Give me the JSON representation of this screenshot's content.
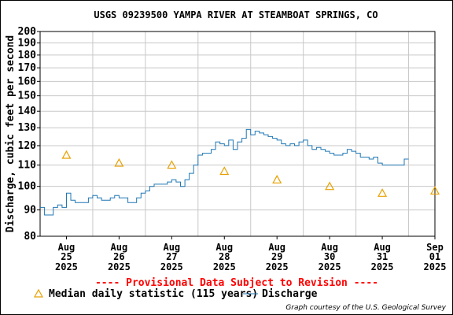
{
  "chart_data": {
    "type": "line",
    "title": "USGS 09239500 YAMPA RIVER AT STEAMBOAT SPRINGS, CO",
    "ylabel": "Discharge, cubic feet per second",
    "xlabel": "",
    "ylim": [
      80,
      200
    ],
    "yscale": "log",
    "yticks": [
      "80",
      "90",
      "100",
      "110",
      "120",
      "130",
      "140",
      "150",
      "160",
      "170",
      "180",
      "190",
      "200"
    ],
    "xlim": [
      "2025-08-25T00:00",
      "2025-09-01T12:00"
    ],
    "xticks": [
      {
        "date": "2025-08-25T12:00",
        "month": "Aug",
        "day": "25",
        "year": "2025"
      },
      {
        "date": "2025-08-26T12:00",
        "month": "Aug",
        "day": "26",
        "year": "2025"
      },
      {
        "date": "2025-08-27T12:00",
        "month": "Aug",
        "day": "27",
        "year": "2025"
      },
      {
        "date": "2025-08-28T12:00",
        "month": "Aug",
        "day": "28",
        "year": "2025"
      },
      {
        "date": "2025-08-29T12:00",
        "month": "Aug",
        "day": "29",
        "year": "2025"
      },
      {
        "date": "2025-08-30T12:00",
        "month": "Aug",
        "day": "30",
        "year": "2025"
      },
      {
        "date": "2025-08-31T12:00",
        "month": "Aug",
        "day": "31",
        "year": "2025"
      },
      {
        "date": "2025-09-01T12:00",
        "month": "Sep",
        "day": "01",
        "year": "2025"
      }
    ],
    "grid": true,
    "legend": "bottom",
    "colors": {
      "discharge": "#1f77b4",
      "median": "#e8a000",
      "provisional": "#ff0000"
    },
    "series": [
      {
        "name": "Discharge",
        "kind": "line",
        "x": [
          "2025-08-25T00:00",
          "2025-08-25T02:00",
          "2025-08-25T04:00",
          "2025-08-25T06:00",
          "2025-08-25T08:00",
          "2025-08-25T10:00",
          "2025-08-25T12:00",
          "2025-08-25T14:00",
          "2025-08-25T16:00",
          "2025-08-25T18:00",
          "2025-08-25T20:00",
          "2025-08-25T22:00",
          "2025-08-26T00:00",
          "2025-08-26T02:00",
          "2025-08-26T04:00",
          "2025-08-26T06:00",
          "2025-08-26T08:00",
          "2025-08-26T10:00",
          "2025-08-26T12:00",
          "2025-08-26T14:00",
          "2025-08-26T16:00",
          "2025-08-26T18:00",
          "2025-08-26T20:00",
          "2025-08-26T22:00",
          "2025-08-27T00:00",
          "2025-08-27T02:00",
          "2025-08-27T04:00",
          "2025-08-27T06:00",
          "2025-08-27T08:00",
          "2025-08-27T10:00",
          "2025-08-27T12:00",
          "2025-08-27T14:00",
          "2025-08-27T16:00",
          "2025-08-27T18:00",
          "2025-08-27T20:00",
          "2025-08-27T22:00",
          "2025-08-28T00:00",
          "2025-08-28T02:00",
          "2025-08-28T04:00",
          "2025-08-28T06:00",
          "2025-08-28T08:00",
          "2025-08-28T10:00",
          "2025-08-28T12:00",
          "2025-08-28T14:00",
          "2025-08-28T16:00",
          "2025-08-28T18:00",
          "2025-08-28T20:00",
          "2025-08-28T22:00",
          "2025-08-29T00:00",
          "2025-08-29T02:00",
          "2025-08-29T04:00",
          "2025-08-29T06:00",
          "2025-08-29T08:00",
          "2025-08-29T10:00",
          "2025-08-29T12:00",
          "2025-08-29T14:00",
          "2025-08-29T16:00",
          "2025-08-29T18:00",
          "2025-08-29T20:00",
          "2025-08-29T22:00",
          "2025-08-30T00:00",
          "2025-08-30T02:00",
          "2025-08-30T04:00",
          "2025-08-30T06:00",
          "2025-08-30T08:00",
          "2025-08-30T10:00",
          "2025-08-30T12:00",
          "2025-08-30T14:00",
          "2025-08-30T16:00",
          "2025-08-30T18:00",
          "2025-08-30T20:00",
          "2025-08-30T22:00",
          "2025-08-31T00:00",
          "2025-08-31T02:00",
          "2025-08-31T04:00",
          "2025-08-31T06:00",
          "2025-08-31T08:00",
          "2025-08-31T10:00",
          "2025-08-31T12:00",
          "2025-08-31T14:00",
          "2025-08-31T16:00",
          "2025-08-31T18:00",
          "2025-08-31T20:00",
          "2025-08-31T22:00",
          "2025-09-01T00:00"
        ],
        "values": [
          91,
          88,
          88,
          91,
          92,
          91,
          97,
          94,
          93,
          93,
          93,
          95,
          96,
          95,
          94,
          94,
          95,
          96,
          95,
          95,
          93,
          93,
          95,
          97,
          98,
          100,
          101,
          101,
          101,
          102,
          103,
          102,
          100,
          103,
          106,
          110,
          115,
          116,
          116,
          118,
          122,
          121,
          120,
          123,
          118,
          122,
          124,
          129,
          126,
          128,
          127,
          126,
          125,
          124,
          123,
          121,
          120,
          121,
          120,
          122,
          123,
          120,
          118,
          119,
          118,
          117,
          116,
          115,
          115,
          116,
          118,
          117,
          116,
          114,
          114,
          113,
          114,
          111,
          110,
          110,
          110,
          110,
          110,
          113,
          113
        ]
      },
      {
        "name": "Median daily statistic (115 years)",
        "kind": "marker",
        "x": [
          "2025-08-25T12:00",
          "2025-08-26T12:00",
          "2025-08-27T12:00",
          "2025-08-28T12:00",
          "2025-08-29T12:00",
          "2025-08-30T12:00",
          "2025-08-31T12:00",
          "2025-09-01T12:00"
        ],
        "values": [
          115,
          111,
          110,
          107,
          103,
          100,
          97,
          98
        ]
      }
    ],
    "annotations": [
      "---- Provisional Data Subject to Revision ----"
    ],
    "legend_entries": [
      "Median daily statistic (115 years)",
      "Discharge"
    ],
    "credit": "Graph courtesy of the U.S. Geological Survey"
  }
}
